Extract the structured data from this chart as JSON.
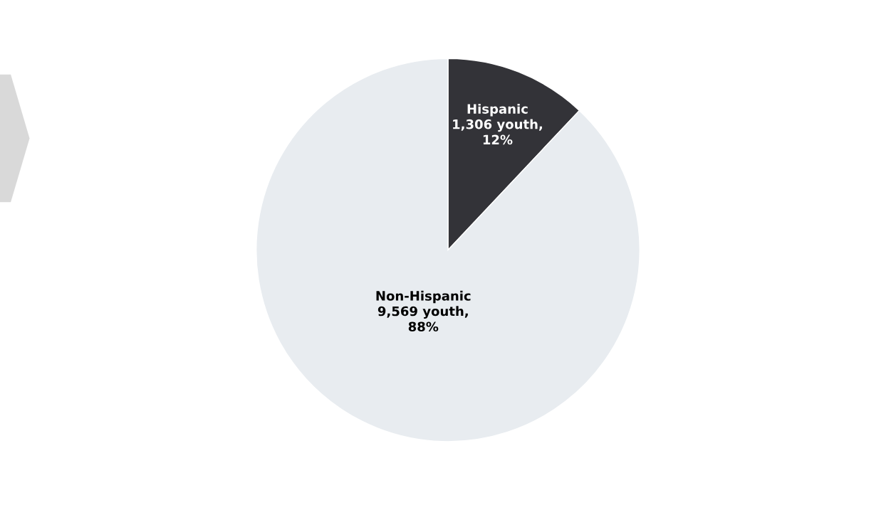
{
  "chart_data": {
    "type": "pie",
    "categories": [
      "Hispanic",
      "Non-Hispanic"
    ],
    "values": [
      1306,
      9569
    ],
    "value_labels": [
      "1,306 youth,\n12%",
      "9,569 youth,\n88%"
    ],
    "colors": [
      "#333338",
      "#e8ecf0"
    ]
  }
}
